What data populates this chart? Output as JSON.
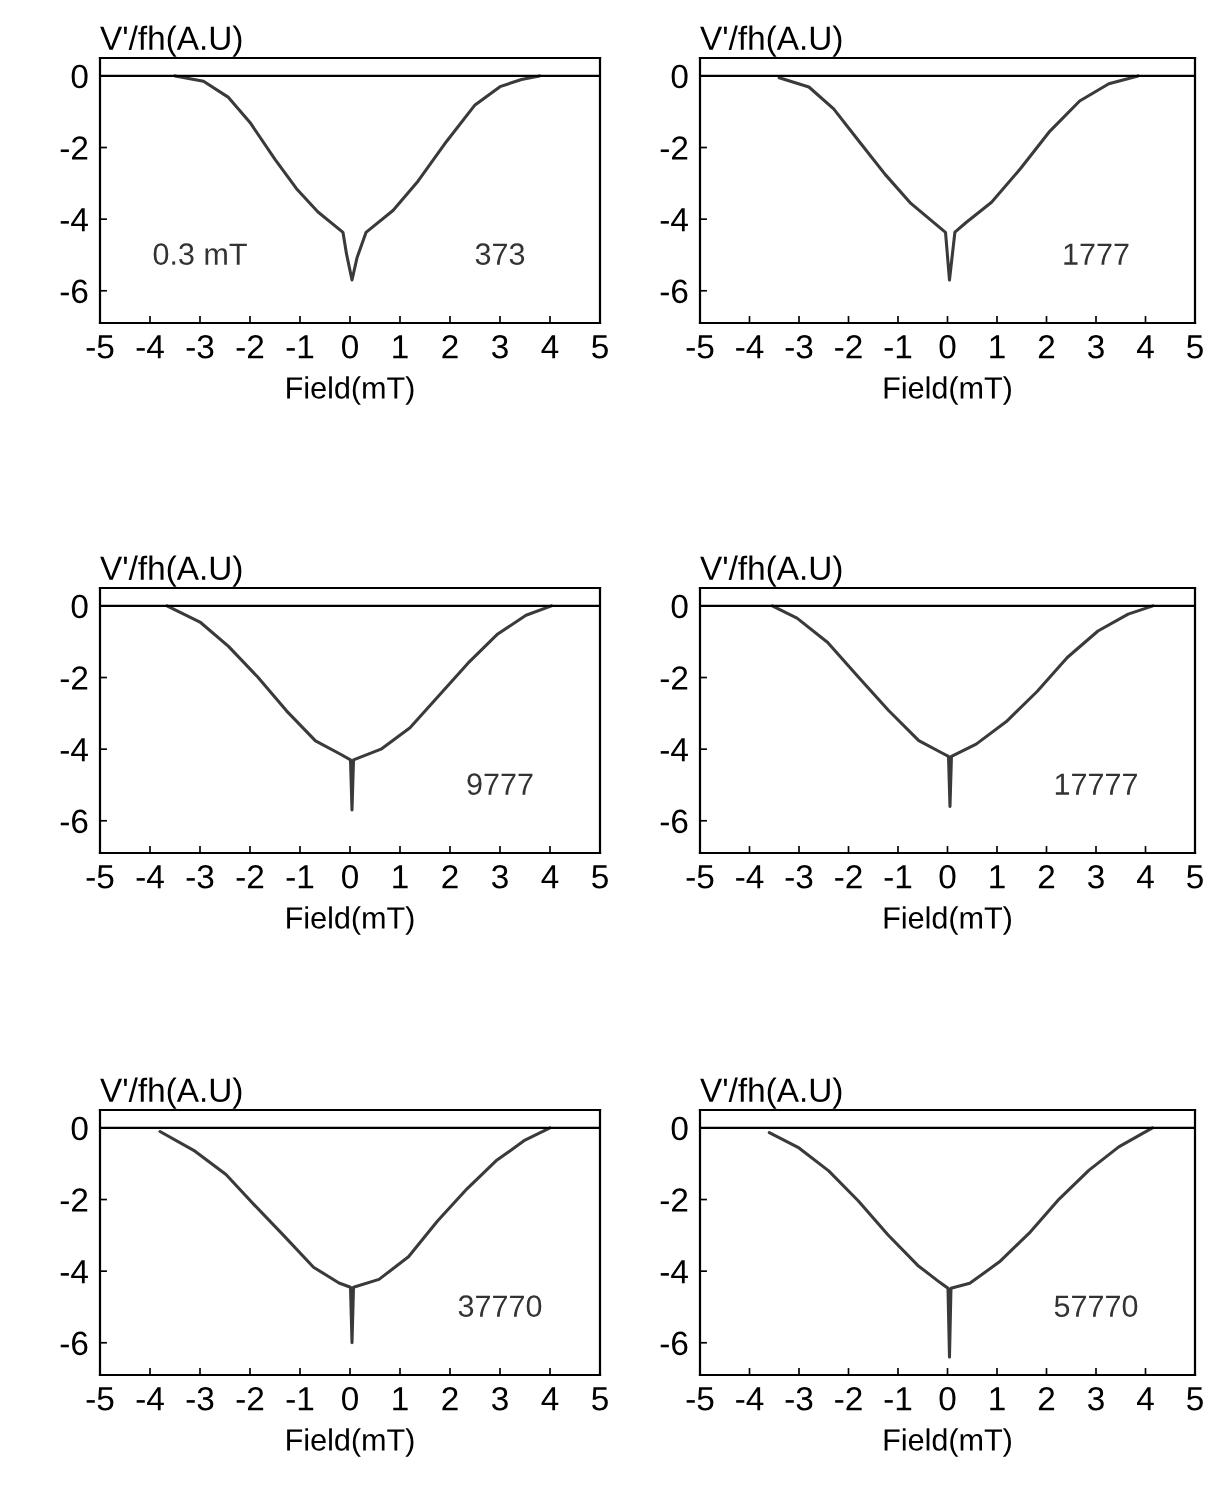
{
  "chart_data": [
    {
      "type": "line",
      "xlabel": "Field(mT)",
      "ylabel": "V'/fh(A.U)",
      "annotations": [
        "0.3 mT",
        "373"
      ],
      "x": [
        -3.5,
        -2.93,
        -2.43,
        -2.0,
        -1.5,
        -1.07,
        -0.64,
        -0.14,
        -0.07,
        0.04,
        0.14,
        0.32,
        0.86,
        1.36,
        1.93,
        2.5,
        3.0,
        3.43,
        3.79
      ],
      "series": [
        {
          "color": "#3a3a3a",
          "values": [
            0,
            -0.15,
            -0.6,
            -1.3,
            -2.33,
            -3.15,
            -3.8,
            -4.37,
            -4.97,
            -5.7,
            -5.08,
            -4.37,
            -3.76,
            -2.94,
            -1.83,
            -0.81,
            -0.3,
            -0.1,
            0
          ]
        }
      ],
      "xlim": [
        -5,
        5
      ],
      "xticks": [
        -5,
        -4,
        -3,
        -2,
        -1,
        0,
        1,
        2,
        3,
        4,
        5
      ],
      "ylim": [
        -6.9,
        0.5
      ],
      "yticks": [
        0,
        -2,
        -4,
        -6
      ],
      "ref_lines": [
        {
          "axis": "y",
          "value": 0,
          "color": "#000000"
        }
      ]
    },
    {
      "type": "line",
      "xlabel": "Field(mT)",
      "ylabel": "V'/fh(A.U)",
      "annotations": [
        "1777"
      ],
      "x": [
        -3.4,
        -2.8,
        -2.3,
        -1.78,
        -1.26,
        -0.74,
        -0.3,
        -0.04,
        0.04,
        0.15,
        0.37,
        0.89,
        1.48,
        2.07,
        2.67,
        3.26,
        3.85
      ],
      "series": [
        {
          "color": "#3a3a3a",
          "values": [
            -0.05,
            -0.31,
            -0.92,
            -1.84,
            -2.75,
            -3.56,
            -4.07,
            -4.37,
            -5.7,
            -4.36,
            -4.1,
            -3.53,
            -2.58,
            -1.54,
            -0.7,
            -0.22,
            0
          ]
        }
      ],
      "xlim": [
        -5,
        5
      ],
      "xticks": [
        -5,
        -4,
        -3,
        -2,
        -1,
        0,
        1,
        2,
        3,
        4,
        5
      ],
      "ylim": [
        -6.9,
        0.5
      ],
      "yticks": [
        0,
        -2,
        -4,
        -6
      ],
      "ref_lines": [
        {
          "axis": "y",
          "value": 0,
          "color": "#000000"
        }
      ]
    },
    {
      "type": "line",
      "xlabel": "Field(mT)",
      "ylabel": "V'/fh(A.U)",
      "annotations": [
        "9777"
      ],
      "x": [
        -3.66,
        -3.0,
        -2.43,
        -1.85,
        -1.27,
        -0.69,
        -0.18,
        0.01,
        0.04,
        0.07,
        0.62,
        1.2,
        1.78,
        2.36,
        2.94,
        3.52,
        4.03
      ],
      "series": [
        {
          "color": "#3a3a3a",
          "values": [
            0,
            -0.45,
            -1.13,
            -1.98,
            -2.93,
            -3.77,
            -4.15,
            -4.3,
            -5.7,
            -4.3,
            -4.0,
            -3.4,
            -2.5,
            -1.6,
            -0.8,
            -0.26,
            0
          ]
        }
      ],
      "xlim": [
        -5,
        5
      ],
      "xticks": [
        -5,
        -4,
        -3,
        -2,
        -1,
        0,
        1,
        2,
        3,
        4,
        5
      ],
      "ylim": [
        -6.9,
        0.5
      ],
      "yticks": [
        0,
        -2,
        -4,
        -6
      ],
      "ref_lines": [
        {
          "axis": "y",
          "value": 0,
          "color": "#000000"
        }
      ]
    },
    {
      "type": "line",
      "xlabel": "Field(mT)",
      "ylabel": "V'/fh(A.U)",
      "annotations": [
        "17777"
      ],
      "x": [
        -3.54,
        -3.04,
        -2.42,
        -1.81,
        -1.19,
        -0.58,
        -0.12,
        0.02,
        0.05,
        0.08,
        0.58,
        1.19,
        1.81,
        2.42,
        3.04,
        3.65,
        4.15
      ],
      "series": [
        {
          "color": "#3a3a3a",
          "values": [
            0,
            -0.34,
            -1.02,
            -1.97,
            -2.92,
            -3.76,
            -4.1,
            -4.2,
            -5.6,
            -4.2,
            -3.86,
            -3.23,
            -2.39,
            -1.44,
            -0.7,
            -0.23,
            0
          ]
        }
      ],
      "xlim": [
        -5,
        5
      ],
      "xticks": [
        -5,
        -4,
        -3,
        -2,
        -1,
        0,
        1,
        2,
        3,
        4,
        5
      ],
      "ylim": [
        -6.9,
        0.5
      ],
      "yticks": [
        0,
        -2,
        -4,
        -6
      ],
      "ref_lines": [
        {
          "axis": "y",
          "value": 0,
          "color": "#000000"
        }
      ]
    },
    {
      "type": "line",
      "xlabel": "Field(mT)",
      "ylabel": "V'/fh(A.U)",
      "annotations": [
        "37770"
      ],
      "x": [
        -3.8,
        -3.1,
        -2.48,
        -1.9,
        -1.31,
        -0.73,
        -0.22,
        0.01,
        0.04,
        0.07,
        0.58,
        1.17,
        1.75,
        2.34,
        2.92,
        3.5,
        4.0
      ],
      "series": [
        {
          "color": "#3a3a3a",
          "values": [
            -0.1,
            -0.65,
            -1.3,
            -2.17,
            -3.03,
            -3.89,
            -4.33,
            -4.45,
            -6.0,
            -4.45,
            -4.23,
            -3.6,
            -2.6,
            -1.7,
            -0.92,
            -0.34,
            0
          ]
        }
      ],
      "xlim": [
        -5,
        5
      ],
      "xticks": [
        -5,
        -4,
        -3,
        -2,
        -1,
        0,
        1,
        2,
        3,
        4,
        5
      ],
      "ylim": [
        -6.9,
        0.5
      ],
      "yticks": [
        0,
        -2,
        -4,
        -6
      ],
      "ref_lines": [
        {
          "axis": "y",
          "value": 0,
          "color": "#000000"
        }
      ]
    },
    {
      "type": "line",
      "xlabel": "Field(mT)",
      "ylabel": "V'/fh(A.U)",
      "annotations": [
        "57770"
      ],
      "x": [
        -3.6,
        -3.0,
        -2.4,
        -1.8,
        -1.2,
        -0.6,
        -0.15,
        0.01,
        0.04,
        0.07,
        0.45,
        1.05,
        1.65,
        2.26,
        2.86,
        3.46,
        4.14
      ],
      "series": [
        {
          "color": "#3a3a3a",
          "values": [
            -0.13,
            -0.56,
            -1.2,
            -2.04,
            -2.99,
            -3.84,
            -4.32,
            -4.48,
            -6.4,
            -4.48,
            -4.34,
            -3.74,
            -2.94,
            -1.98,
            -1.18,
            -0.53,
            0
          ]
        }
      ],
      "xlim": [
        -5,
        5
      ],
      "xticks": [
        -5,
        -4,
        -3,
        -2,
        -1,
        0,
        1,
        2,
        3,
        4,
        5
      ],
      "ylim": [
        -6.9,
        0.5
      ],
      "yticks": [
        0,
        -2,
        -4,
        -6
      ],
      "ref_lines": [
        {
          "axis": "y",
          "value": 0,
          "color": "#000000"
        }
      ]
    }
  ]
}
